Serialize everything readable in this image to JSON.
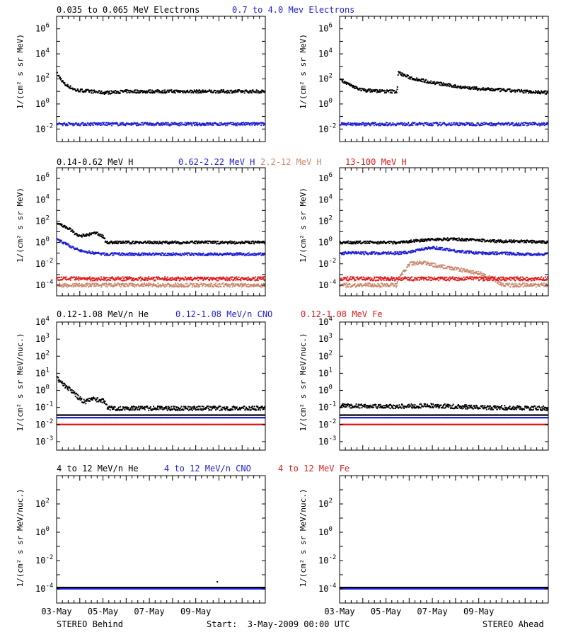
{
  "colors": {
    "black": "#000000",
    "blue": "#1f1fd6",
    "tan": "#c88a6e",
    "red": "#e21a1a"
  },
  "footer": {
    "left": "STEREO Behind",
    "center": "Start:  3-May-2009 00:00 UTC",
    "right": "STEREO Ahead"
  },
  "x_ticks": [
    "03-May",
    "05-May",
    "07-May",
    "09-May"
  ],
  "rows": [
    {
      "titles": [
        {
          "text": "0.035 to 0.065 MeV Electrons",
          "color": "black"
        },
        {
          "text": "0.7 to 4.0 Mev Electrons",
          "color": "blue"
        }
      ],
      "ylabel": "1/(cm² s sr MeV)",
      "y_exps": [
        -2,
        0,
        2,
        4,
        6
      ]
    },
    {
      "titles": [
        {
          "text": "0.14-0.62 MeV H",
          "color": "black"
        },
        {
          "text": "0.62-2.22 MeV H",
          "color": "blue"
        },
        {
          "text": "2.2-12 MeV H",
          "color": "tan"
        },
        {
          "text": "13-100 MeV H",
          "color": "red"
        }
      ],
      "ylabel": "1/(cm² s sr MeV)",
      "y_exps": [
        -4,
        -2,
        0,
        2,
        4,
        6
      ]
    },
    {
      "titles": [
        {
          "text": "0.12-1.08 MeV/n He",
          "color": "black"
        },
        {
          "text": "0.12-1.08 MeV/n CNO",
          "color": "blue"
        },
        {
          "text": "0.12-1.08 MeV Fe",
          "color": "red"
        }
      ],
      "ylabel": "1/(cm² s sr MeV/nuc.)",
      "y_exps": [
        -3,
        -2,
        -1,
        0,
        1,
        2,
        3,
        4
      ]
    },
    {
      "titles": [
        {
          "text": "4 to 12 MeV/n He",
          "color": "black"
        },
        {
          "text": "4 to 12 MeV/n CNO",
          "color": "blue"
        },
        {
          "text": "4 to 12 MeV Fe",
          "color": "red"
        }
      ],
      "ylabel": "1/(cm² s sr MeV/nuc.)",
      "y_exps": [
        -4,
        -2,
        0,
        2
      ]
    }
  ],
  "chart_data": [
    {
      "type": "scatter",
      "panel": "electrons-behind",
      "x_unit": "days since 3-May-2009 00:00 UTC",
      "xlim": [
        0,
        9
      ],
      "yscale": "log",
      "ylim_exp": [
        -3,
        7
      ],
      "series": [
        {
          "name": "0.035 to 0.065 MeV Electrons",
          "color": "black",
          "x": [
            0,
            0.3,
            0.8,
            1.5,
            2.0,
            3.0,
            5.0,
            7.0,
            9.0
          ],
          "y_log10": [
            2.4,
            1.6,
            1.1,
            1.0,
            0.9,
            1.0,
            1.0,
            1.0,
            1.0
          ]
        },
        {
          "name": "0.7 to 4.0 Mev Electrons",
          "color": "blue",
          "x": [
            0,
            9
          ],
          "y_log10": [
            -1.6,
            -1.6
          ]
        }
      ]
    },
    {
      "type": "scatter",
      "panel": "electrons-ahead",
      "x_unit": "days since 3-May-2009 00:00 UTC",
      "xlim": [
        0,
        9
      ],
      "yscale": "log",
      "ylim_exp": [
        -3,
        7
      ],
      "series": [
        {
          "name": "0.035 to 0.065 MeV Electrons",
          "color": "black",
          "x": [
            0,
            0.5,
            1.0,
            2.0,
            2.45,
            2.5,
            3.0,
            4.0,
            5.0,
            6.0,
            7.0,
            8.0,
            9.0
          ],
          "y_log10": [
            2.0,
            1.4,
            1.1,
            1.0,
            1.0,
            2.5,
            2.1,
            1.7,
            1.4,
            1.2,
            1.1,
            1.0,
            0.9
          ]
        },
        {
          "name": "0.7 to 4.0 Mev Electrons",
          "color": "blue",
          "x": [
            0,
            9
          ],
          "y_log10": [
            -1.6,
            -1.6
          ]
        }
      ]
    },
    {
      "type": "scatter",
      "panel": "protons-behind",
      "x_unit": "days since 3-May-2009 00:00 UTC",
      "xlim": [
        0,
        9
      ],
      "yscale": "log",
      "ylim_exp": [
        -5,
        7
      ],
      "series": [
        {
          "name": "0.14-0.62 MeV H",
          "color": "black",
          "x": [
            0,
            0.5,
            0.9,
            1.3,
            1.7,
            2.0,
            2.1,
            3.0,
            5.0,
            7.0,
            9.0
          ],
          "y_log10": [
            1.8,
            1.3,
            0.6,
            0.7,
            0.9,
            0.5,
            0.0,
            0.0,
            0.0,
            0.0,
            0.0
          ]
        },
        {
          "name": "0.62-2.22 MeV H",
          "color": "blue",
          "x": [
            0,
            0.5,
            1.0,
            2.0,
            3.0,
            5.0,
            7.0,
            9.0
          ],
          "y_log10": [
            0.3,
            -0.3,
            -0.8,
            -1.1,
            -1.1,
            -1.1,
            -1.1,
            -1.1
          ]
        },
        {
          "name": "2.2-12 MeV H",
          "color": "tan",
          "x": [
            0,
            9
          ],
          "y_log10": [
            -4.0,
            -4.0
          ]
        },
        {
          "name": "13-100 MeV H",
          "color": "red",
          "x": [
            0,
            9
          ],
          "y_log10": [
            -3.4,
            -3.4
          ]
        }
      ]
    },
    {
      "type": "scatter",
      "panel": "protons-ahead",
      "x_unit": "days since 3-May-2009 00:00 UTC",
      "xlim": [
        0,
        9
      ],
      "yscale": "log",
      "ylim_exp": [
        -5,
        7
      ],
      "series": [
        {
          "name": "0.14-0.62 MeV H",
          "color": "black",
          "x": [
            0,
            2.5,
            3.0,
            3.5,
            4.0,
            4.5,
            5.0,
            6.0,
            7.0,
            8.0,
            9.0
          ],
          "y_log10": [
            0.0,
            0.0,
            0.1,
            0.2,
            0.3,
            0.3,
            0.3,
            0.2,
            0.1,
            0.1,
            0.0
          ]
        },
        {
          "name": "0.62-2.22 MeV H",
          "color": "blue",
          "x": [
            0,
            2.0,
            2.5,
            3.0,
            3.5,
            4.0,
            4.5,
            5.0,
            6.0,
            7.0,
            8.0,
            9.0
          ],
          "y_log10": [
            -1.0,
            -1.0,
            -1.0,
            -0.9,
            -0.6,
            -0.5,
            -0.6,
            -0.8,
            -1.0,
            -1.0,
            -1.1,
            -1.1
          ]
        },
        {
          "name": "2.2-12 MeV H",
          "color": "tan",
          "x": [
            0,
            2.45,
            2.5,
            3.0,
            3.5,
            4.0,
            4.5,
            5.0,
            5.5,
            6.0,
            6.5,
            7.0,
            9.0
          ],
          "y_log10": [
            -4.0,
            -4.0,
            -3.4,
            -2.0,
            -1.9,
            -2.1,
            -2.3,
            -2.5,
            -2.7,
            -2.9,
            -3.3,
            -4.0,
            -4.0
          ]
        },
        {
          "name": "13-100 MeV H",
          "color": "red",
          "x": [
            0,
            9
          ],
          "y_log10": [
            -3.4,
            -3.4
          ]
        }
      ]
    },
    {
      "type": "scatter",
      "panel": "heavy-ions-low-behind",
      "x_unit": "days since 3-May-2009 00:00 UTC",
      "xlim": [
        0,
        9
      ],
      "yscale": "log",
      "ylim_exp": [
        -3.5,
        4
      ],
      "series": [
        {
          "name": "0.12-1.08 MeV/n He",
          "color": "black",
          "x": [
            0,
            0.3,
            0.6,
            0.9,
            1.2,
            1.5,
            2.0,
            2.2,
            3.0,
            5.0,
            7.0,
            9.0
          ],
          "y_log10": [
            0.7,
            0.3,
            0.0,
            -0.4,
            -0.7,
            -0.5,
            -0.6,
            -1.05,
            -1.05,
            -1.05,
            -1.05,
            -1.05
          ]
        },
        {
          "name": "0.12-1.08 MeV/n CNO",
          "color": "blue",
          "x": [
            0,
            9
          ],
          "y_log10": [
            -1.6,
            -1.6
          ]
        },
        {
          "name": "0.12-1.08 MeV Fe",
          "color": "red",
          "x": [
            0,
            9
          ],
          "y_log10": [
            -2.0,
            -2.0
          ]
        }
      ]
    },
    {
      "type": "scatter",
      "panel": "heavy-ions-low-ahead",
      "x_unit": "days since 3-May-2009 00:00 UTC",
      "xlim": [
        0,
        9
      ],
      "yscale": "log",
      "ylim_exp": [
        -3.5,
        4
      ],
      "series": [
        {
          "name": "0.12-1.08 MeV/n He",
          "color": "black",
          "x": [
            0,
            2.0,
            4.0,
            6.0,
            9.0
          ],
          "y_log10": [
            -0.9,
            -0.95,
            -0.9,
            -1.0,
            -1.05
          ]
        },
        {
          "name": "0.12-1.08 MeV/n CNO",
          "color": "blue",
          "x": [
            0,
            9
          ],
          "y_log10": [
            -1.6,
            -1.6
          ]
        },
        {
          "name": "0.12-1.08 MeV Fe",
          "color": "red",
          "x": [
            0,
            9
          ],
          "y_log10": [
            -2.0,
            -2.0
          ]
        }
      ]
    },
    {
      "type": "scatter",
      "panel": "heavy-ions-high-behind",
      "x_unit": "days since 3-May-2009 00:00 UTC",
      "xlim": [
        0,
        9
      ],
      "yscale": "log",
      "ylim_exp": [
        -5,
        4
      ],
      "series": [
        {
          "name": "4 to 12 MeV/n He",
          "color": "black",
          "x": [
            0,
            9
          ],
          "y_log10": [
            -3.9,
            -3.9
          ]
        },
        {
          "name": "4 to 12 MeV/n CNO",
          "color": "blue",
          "x": [
            0,
            9
          ],
          "y_log10": [
            -4.0,
            -4.0
          ]
        }
      ]
    },
    {
      "type": "scatter",
      "panel": "heavy-ions-high-ahead",
      "x_unit": "days since 3-May-2009 00:00 UTC",
      "xlim": [
        0,
        9
      ],
      "yscale": "log",
      "ylim_exp": [
        -5,
        4
      ],
      "series": [
        {
          "name": "4 to 12 MeV/n He",
          "color": "black",
          "x": [
            0,
            9
          ],
          "y_log10": [
            -3.9,
            -3.9
          ]
        },
        {
          "name": "4 to 12 MeV/n CNO",
          "color": "blue",
          "x": [
            0,
            9
          ],
          "y_log10": [
            -4.0,
            -4.0
          ]
        }
      ]
    }
  ]
}
